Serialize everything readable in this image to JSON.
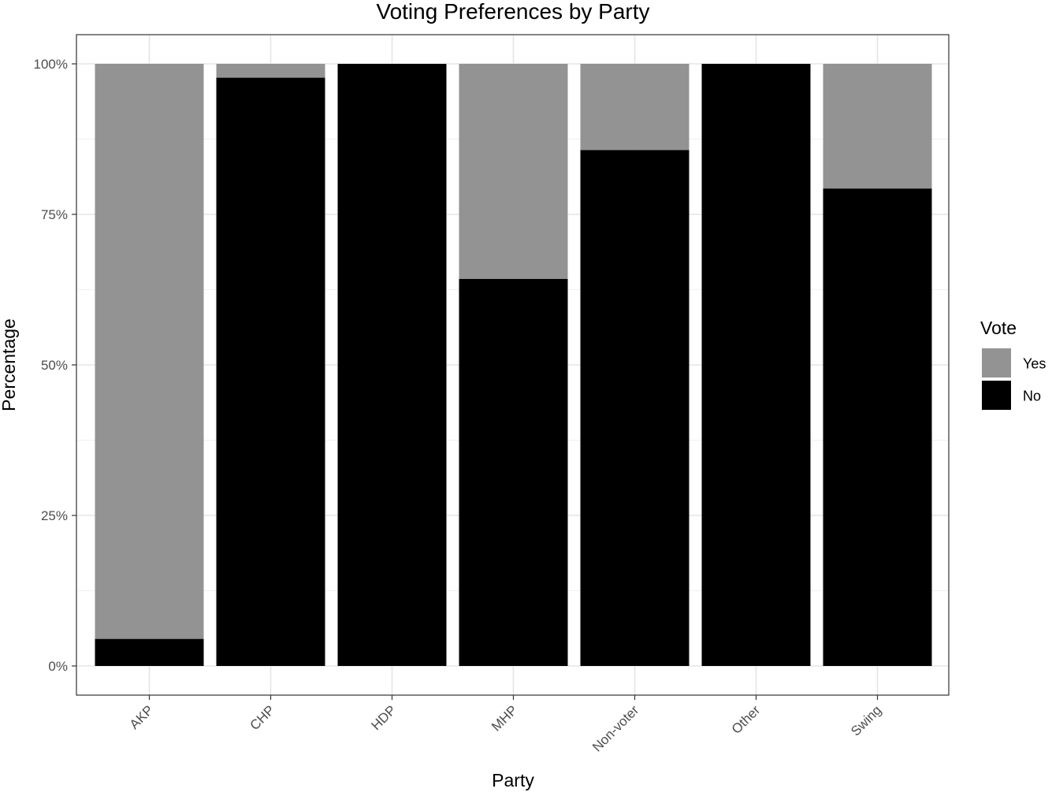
{
  "chart_data": {
    "type": "bar",
    "stacked": true,
    "title": "Voting Preferences by Party",
    "xlabel": "Party",
    "ylabel": "Percentage",
    "categories": [
      "AKP",
      "CHP",
      "HDP",
      "MHP",
      "Non-voter",
      "Other",
      "Swing"
    ],
    "series": [
      {
        "name": "No",
        "color": "#000000",
        "values": [
          4.5,
          97.7,
          100,
          64.3,
          85.7,
          100,
          79.3
        ]
      },
      {
        "name": "Yes",
        "color": "#939393",
        "values": [
          95.5,
          2.3,
          0,
          35.7,
          14.3,
          0,
          20.7
        ]
      }
    ],
    "ylim": [
      0,
      100
    ],
    "yticks": [
      0,
      25,
      50,
      75,
      100
    ],
    "ytick_labels": [
      "0%",
      "25%",
      "50%",
      "75%",
      "100%"
    ],
    "grid": true,
    "legend": {
      "title": "Vote",
      "placement": "right",
      "entries": [
        {
          "label": "Yes",
          "color": "#939393"
        },
        {
          "label": "No",
          "color": "#000000"
        }
      ]
    }
  }
}
